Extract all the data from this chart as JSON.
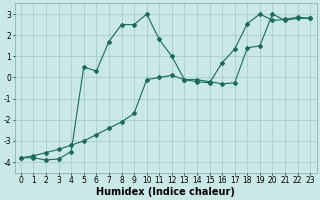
{
  "line1_x": [
    0,
    1,
    2,
    3,
    4,
    5,
    6,
    7,
    8,
    9,
    10,
    11,
    12,
    13,
    14,
    15,
    16,
    17,
    18,
    19,
    20,
    21,
    22,
    23
  ],
  "line1_y": [
    -3.8,
    -3.8,
    -3.9,
    -3.85,
    -3.5,
    0.5,
    0.3,
    1.7,
    2.5,
    2.5,
    3.0,
    1.8,
    1.0,
    -0.1,
    -0.1,
    -0.2,
    -0.3,
    -0.25,
    1.4,
    1.5,
    3.0,
    2.7,
    2.8,
    2.8
  ],
  "line2_x": [
    0,
    1,
    2,
    3,
    4,
    5,
    6,
    7,
    8,
    9,
    10,
    11,
    12,
    13,
    14,
    15,
    16,
    17,
    18,
    19,
    20,
    21,
    22,
    23
  ],
  "line2_y": [
    -3.8,
    -3.7,
    -3.55,
    -3.4,
    -3.2,
    -3.0,
    -2.7,
    -2.4,
    -2.1,
    -1.7,
    -0.1,
    0.0,
    0.1,
    -0.1,
    -0.2,
    -0.25,
    0.7,
    1.35,
    2.55,
    3.0,
    2.7,
    2.75,
    2.85,
    2.8
  ],
  "bg_color": "#c9e8e6",
  "grid_color": "#a8ccca",
  "line_color": "#1a6b5a",
  "xlabel": "Humidex (Indice chaleur)",
  "xlim": [
    -0.5,
    23.5
  ],
  "ylim": [
    -4.5,
    3.5
  ],
  "yticks": [
    -4,
    -3,
    -2,
    -1,
    0,
    1,
    2,
    3
  ],
  "xticks": [
    0,
    1,
    2,
    3,
    4,
    5,
    6,
    7,
    8,
    9,
    10,
    11,
    12,
    13,
    14,
    15,
    16,
    17,
    18,
    19,
    20,
    21,
    22,
    23
  ],
  "tick_fontsize": 5.5,
  "xlabel_fontsize": 7.0,
  "marker": "D",
  "marker_size": 2.0,
  "line_width": 0.8
}
